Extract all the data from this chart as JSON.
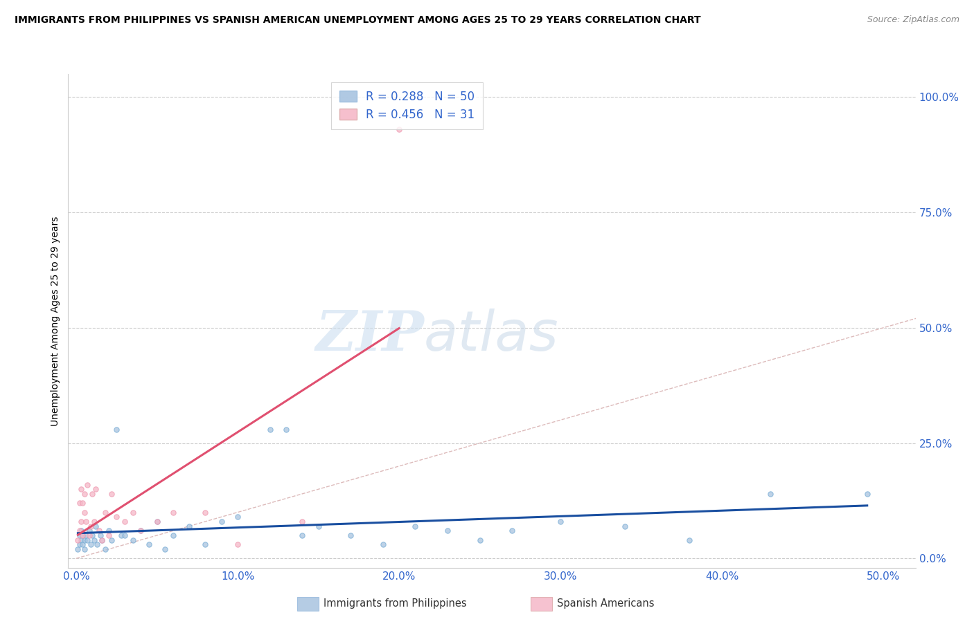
{
  "title": "IMMIGRANTS FROM PHILIPPINES VS SPANISH AMERICAN UNEMPLOYMENT AMONG AGES 25 TO 29 YEARS CORRELATION CHART",
  "source": "Source: ZipAtlas.com",
  "ylabel": "Unemployment Among Ages 25 to 29 years",
  "xlabel_ticks": [
    "0.0%",
    "10.0%",
    "20.0%",
    "30.0%",
    "40.0%",
    "50.0%"
  ],
  "xlabel_vals": [
    0.0,
    0.1,
    0.2,
    0.3,
    0.4,
    0.5
  ],
  "ylabel_ticks": [
    "0.0%",
    "25.0%",
    "50.0%",
    "75.0%",
    "100.0%"
  ],
  "ylabel_vals": [
    0.0,
    0.25,
    0.5,
    0.75,
    1.0
  ],
  "xlim": [
    -0.005,
    0.52
  ],
  "ylim": [
    -0.02,
    1.05
  ],
  "R_blue": 0.288,
  "N_blue": 50,
  "R_pink": 0.456,
  "N_pink": 31,
  "legend_label_blue": "Immigrants from Philippines",
  "legend_label_pink": "Spanish Americans",
  "watermark_zip": "ZIP",
  "watermark_atlas": "atlas",
  "blue_color": "#a8c4e0",
  "blue_edge": "#7aaed6",
  "pink_color": "#f5b8c8",
  "pink_edge": "#ee99b0",
  "line_blue": "#1a4fa0",
  "line_pink": "#e05070",
  "diag_color": "#ddbbbb",
  "blue_scatter_x": [
    0.001,
    0.002,
    0.002,
    0.003,
    0.003,
    0.004,
    0.004,
    0.005,
    0.005,
    0.006,
    0.007,
    0.008,
    0.009,
    0.01,
    0.011,
    0.012,
    0.013,
    0.015,
    0.016,
    0.018,
    0.02,
    0.022,
    0.025,
    0.028,
    0.03,
    0.035,
    0.04,
    0.045,
    0.05,
    0.055,
    0.06,
    0.07,
    0.08,
    0.09,
    0.1,
    0.12,
    0.13,
    0.14,
    0.15,
    0.17,
    0.19,
    0.21,
    0.23,
    0.25,
    0.27,
    0.3,
    0.34,
    0.38,
    0.43,
    0.49
  ],
  "blue_scatter_y": [
    0.02,
    0.03,
    0.05,
    0.04,
    0.06,
    0.03,
    0.05,
    0.04,
    0.02,
    0.05,
    0.04,
    0.06,
    0.03,
    0.05,
    0.04,
    0.07,
    0.03,
    0.05,
    0.04,
    0.02,
    0.06,
    0.04,
    0.28,
    0.05,
    0.05,
    0.04,
    0.06,
    0.03,
    0.08,
    0.02,
    0.05,
    0.07,
    0.03,
    0.08,
    0.09,
    0.28,
    0.28,
    0.05,
    0.07,
    0.05,
    0.03,
    0.07,
    0.06,
    0.04,
    0.06,
    0.08,
    0.07,
    0.04,
    0.14,
    0.14
  ],
  "pink_scatter_x": [
    0.001,
    0.002,
    0.002,
    0.003,
    0.003,
    0.004,
    0.004,
    0.005,
    0.005,
    0.006,
    0.007,
    0.008,
    0.009,
    0.01,
    0.011,
    0.012,
    0.014,
    0.016,
    0.018,
    0.02,
    0.022,
    0.025,
    0.03,
    0.035,
    0.04,
    0.05,
    0.06,
    0.08,
    0.1,
    0.14,
    0.2
  ],
  "pink_scatter_y": [
    0.04,
    0.06,
    0.12,
    0.08,
    0.15,
    0.12,
    0.05,
    0.1,
    0.14,
    0.08,
    0.16,
    0.05,
    0.07,
    0.14,
    0.08,
    0.15,
    0.06,
    0.04,
    0.1,
    0.05,
    0.14,
    0.09,
    0.08,
    0.1,
    0.06,
    0.08,
    0.1,
    0.1,
    0.03,
    0.08,
    0.93
  ],
  "pink_line_x_start": 0.001,
  "pink_line_x_end": 0.2
}
